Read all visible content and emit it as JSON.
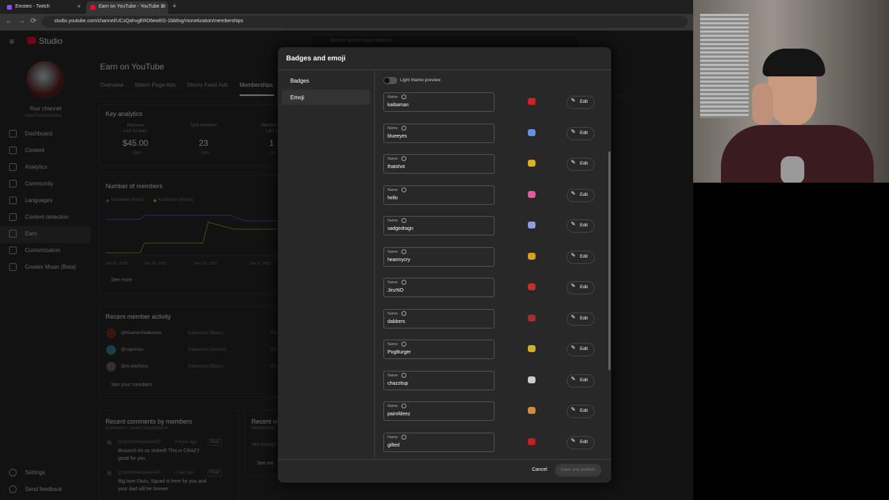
{
  "browser": {
    "tabs": [
      "Emotes - Twitch",
      "Earn on YouTube - YouTube St"
    ],
    "url": "studio.youtube.com/channel/UCsQahvgERD6ewEG-1bb8xg/monetization/memberships"
  },
  "studio": {
    "logo": "Studio",
    "search": "Search across your channel"
  },
  "sidebar": {
    "channel": "Your channel",
    "handle": "DazuTheDevastator",
    "nav": [
      "Dashboard",
      "Content",
      "Analytics",
      "Community",
      "Languages",
      "Content detection",
      "Earn",
      "Customization",
      "Creator Music [Beta]"
    ],
    "bottom": [
      "Settings",
      "Send feedback"
    ]
  },
  "page": {
    "title": "Earn on YouTube",
    "tabs": [
      "Overview",
      "Watch Page Ads",
      "Shorts Feed Ads",
      "Memberships"
    ],
    "analytics": {
      "title": "Key analytics",
      "stats": [
        {
          "label": "Revenue",
          "period": "Last 31 days",
          "value": "$45.00",
          "change": "↓ 58%"
        },
        {
          "label": "Total members",
          "value": "23",
          "change": "↓ 26%"
        },
        {
          "label": "Members g",
          "period": "Last 3",
          "value": "1",
          "change": "↓ 91"
        }
      ]
    },
    "members_chart": {
      "title": "Number of members",
      "legend": [
        "Kaibaman (basic)",
        "Kaibaman (duelist)"
      ],
      "dates": [
        "Oct 10, 2025",
        "Oct 28, 2025",
        "Nov 15, 2025",
        "Dec 4, 2025"
      ],
      "more": "See more"
    },
    "activity": {
      "title": "Recent member activity",
      "rows": [
        [
          "@KisandraValentine",
          "Kaibaman (Basic)",
          "Re"
        ],
        [
          "@capntrips",
          "Kaibaman (Duelist)",
          "Up"
        ],
        [
          "@xLadySona",
          "Kaibaman (Basic)",
          "Re"
        ]
      ],
      "more": "See your members"
    },
    "comments": {
      "title": "Recent comments by members",
      "subtitle": "Comments I haven't responded to",
      "items": [
        {
          "author": "@cyrchronexplorer420",
          "time": "5 hours ago",
          "tag": "Post",
          "text": [
            "Bruuuuh Im so stoked! This is CRAZY",
            "good for you"
          ]
        },
        {
          "author": "@cyrchronexplorer420",
          "time": "1 day ago",
          "tag": "Post",
          "text": [
            "Big love Dazu, Squad is here for you and",
            "your dad will be forever"
          ]
        }
      ]
    },
    "videos": {
      "title": "Recent vi",
      "subtitle": "Membership",
      "empty": "Not enough",
      "more": "See mo"
    }
  },
  "modal": {
    "title": "Badges and emoji",
    "nav": [
      "Badges",
      "Emoji"
    ],
    "toggle": "Light theme preview",
    "field_label": "Name",
    "edit": "Edit",
    "emoji": [
      "kaibaman",
      "blueeyes",
      "thatshot",
      "hello",
      "sadgedragn",
      "hearmycry",
      "JinzNO",
      "dabbers",
      "PogBurger",
      "chazzitup",
      "pairofdeez",
      "gifted"
    ],
    "cancel": "Cancel",
    "save": "Save and publish"
  }
}
